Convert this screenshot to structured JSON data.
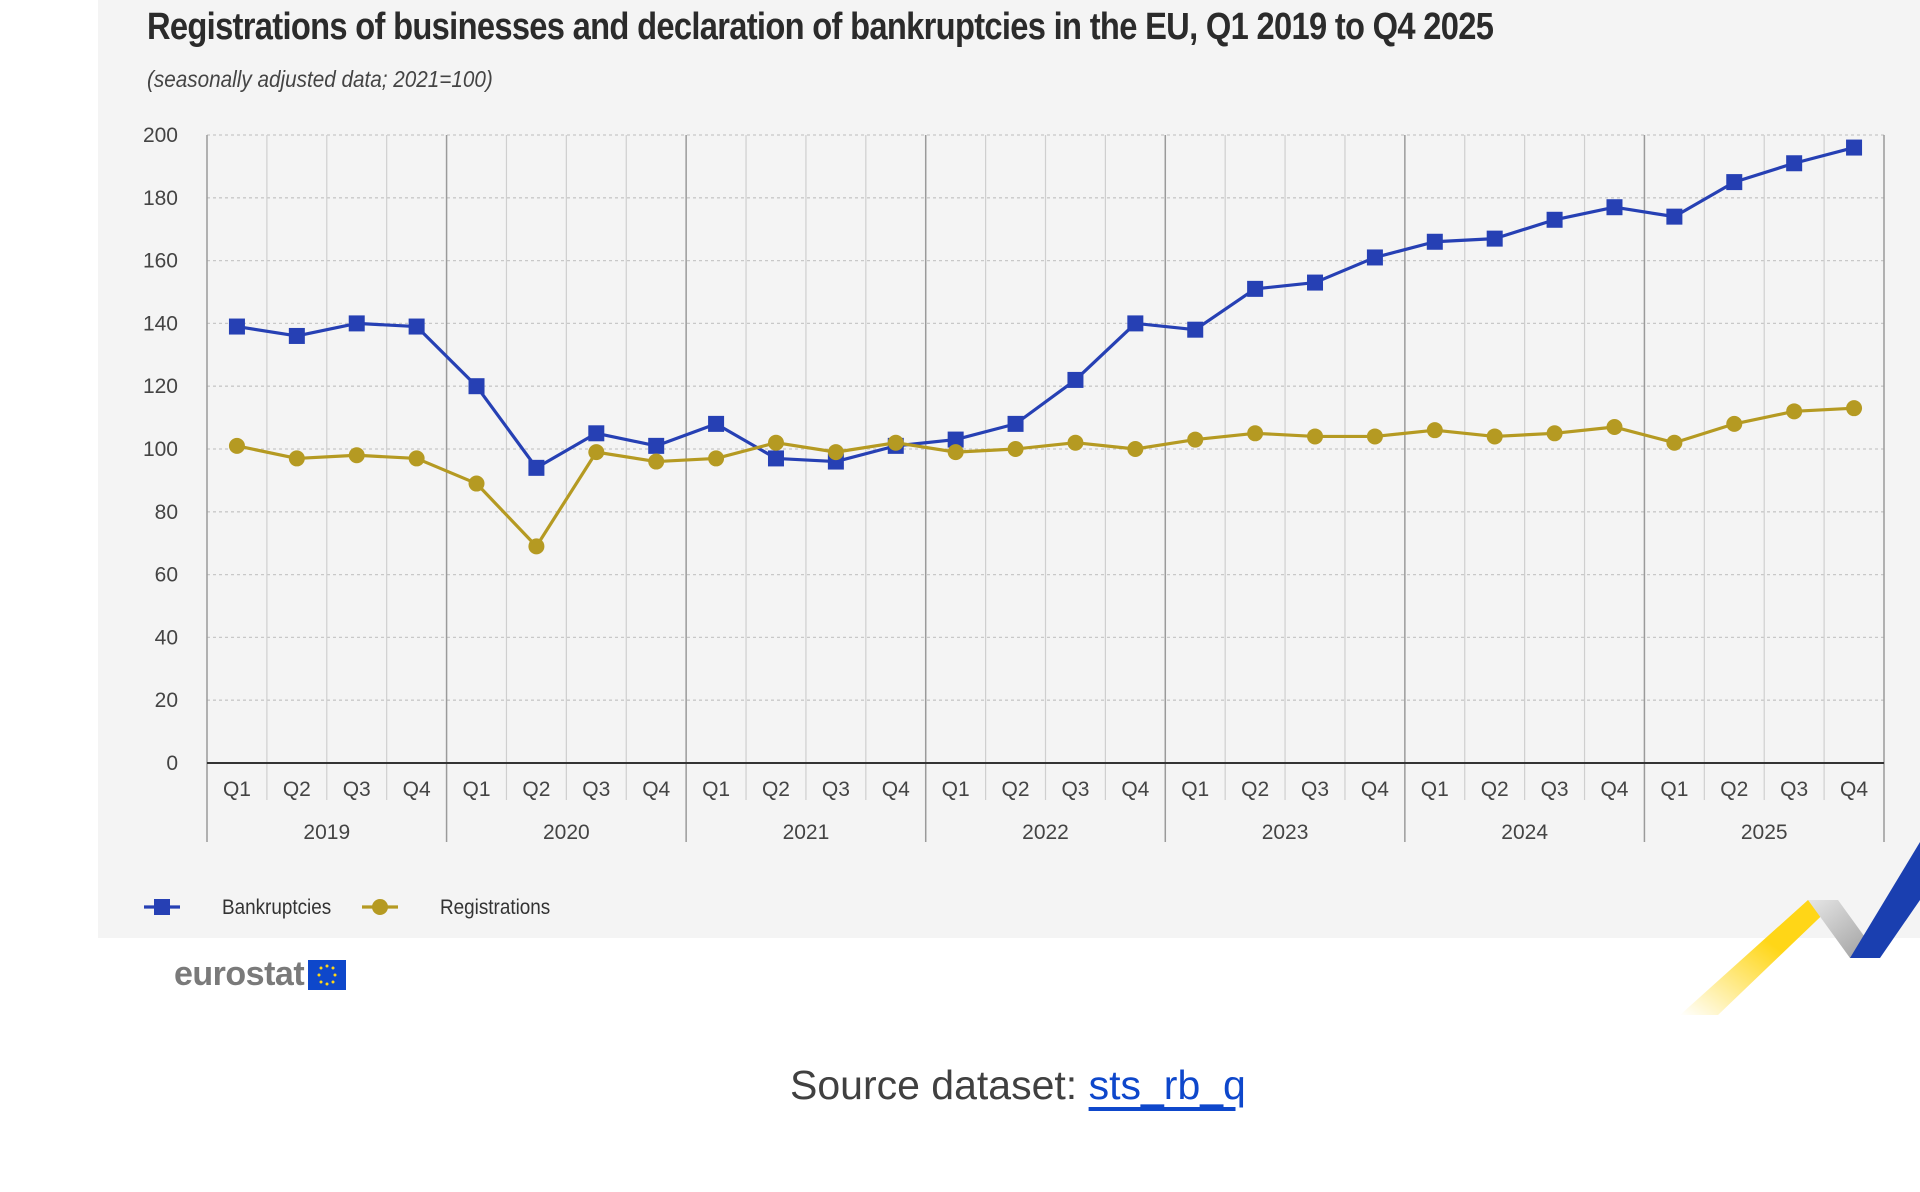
{
  "chart_data": {
    "type": "line",
    "title": "Registrations of businesses and declaration of bankruptcies in the EU, Q1 2019 to Q4 2025",
    "subtitle": "(seasonally adjusted data; 2021=100)",
    "quarters": [
      "Q1",
      "Q2",
      "Q3",
      "Q4"
    ],
    "years": [
      "2019",
      "2020",
      "2021",
      "2022",
      "2023",
      "2024",
      "2025"
    ],
    "ylim": [
      0,
      200
    ],
    "yticks": [
      0,
      20,
      40,
      60,
      80,
      100,
      120,
      140,
      160,
      180,
      200
    ],
    "grid": true,
    "legend_position": "bottom-left",
    "series": [
      {
        "name": "Bankruptcies",
        "color": "#2640b4",
        "marker": "square",
        "values": [
          139,
          136,
          140,
          139,
          120,
          94,
          105,
          101,
          108,
          97,
          96,
          101,
          103,
          108,
          122,
          140,
          138,
          151,
          153,
          161,
          166,
          167,
          173,
          177,
          174,
          185,
          191,
          196
        ]
      },
      {
        "name": "Registrations",
        "color": "#b59a22",
        "marker": "circle",
        "values": [
          101,
          97,
          98,
          97,
          89,
          69,
          99,
          96,
          97,
          102,
          99,
          102,
          99,
          100,
          102,
          100,
          103,
          105,
          104,
          104,
          106,
          104,
          105,
          107,
          102,
          108,
          112,
          113
        ]
      }
    ]
  },
  "branding": {
    "logo_text": "eurostat"
  },
  "source": {
    "label": "Source dataset:",
    "link_text": "sts_rb_q"
  }
}
